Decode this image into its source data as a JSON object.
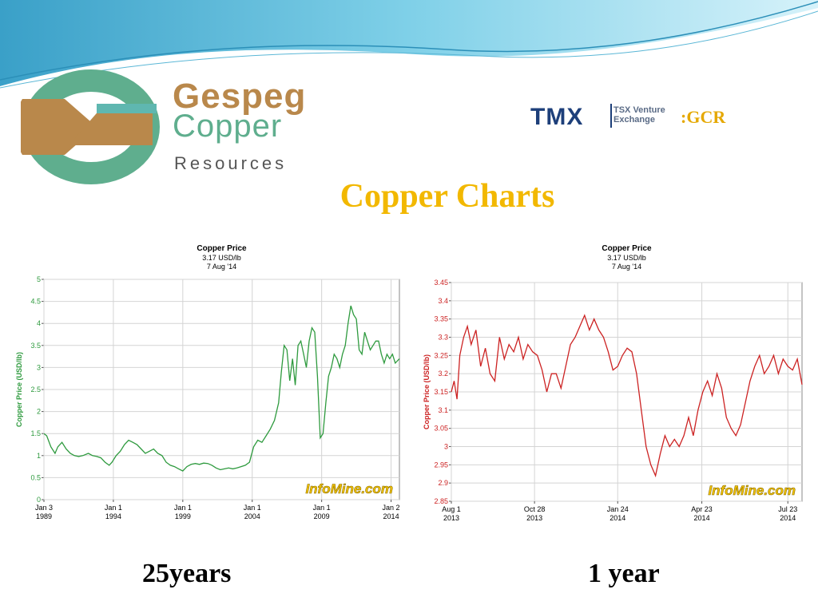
{
  "logo": {
    "line1": "Gespeg",
    "line2": "Copper",
    "line3": "Resources",
    "colors": {
      "bronze": "#b9884b",
      "green": "#5fae8e"
    }
  },
  "exchange": {
    "logo_text": "TMX",
    "exchange_name_line1": "TSX Venture",
    "exchange_name_line2": "Exchange",
    "ticker": ":GCR"
  },
  "title": "Copper Charts",
  "captions": {
    "left": "25years",
    "right": "1 year"
  },
  "chart_data": [
    {
      "type": "line",
      "title": "Copper Price",
      "subtitle1": "3.17 USD/lb",
      "subtitle2": "7 Aug '14",
      "ylabel": "Copper Price (USD/lb)",
      "xlabel": "",
      "watermark": "InfoMine.com",
      "color": "#2e9a3e",
      "ylim": [
        0,
        5
      ],
      "yticks": [
        "0",
        "0.5",
        "1",
        "1.5",
        "2",
        "2.5",
        "3",
        "3.5",
        "4",
        "4.5",
        "5"
      ],
      "xlim": [
        1989.0,
        2014.6
      ],
      "xticks": [
        {
          "pos": 1989.0,
          "line1": "Jan 3",
          "line2": "1989"
        },
        {
          "pos": 1994.0,
          "line1": "Jan 1",
          "line2": "1994"
        },
        {
          "pos": 1999.0,
          "line1": "Jan 1",
          "line2": "1999"
        },
        {
          "pos": 2004.0,
          "line1": "Jan 1",
          "line2": "2004"
        },
        {
          "pos": 2009.0,
          "line1": "Jan 1",
          "line2": "2009"
        },
        {
          "pos": 2014.0,
          "line1": "Jan 2",
          "line2": "2014"
        }
      ],
      "grid": true,
      "x": [
        1989.0,
        1989.2,
        1989.5,
        1989.8,
        1990.0,
        1990.3,
        1990.6,
        1990.9,
        1991.2,
        1991.5,
        1991.8,
        1992.2,
        1992.5,
        1992.8,
        1993.1,
        1993.4,
        1993.7,
        1993.9,
        1994.2,
        1994.5,
        1994.8,
        1995.1,
        1995.4,
        1995.7,
        1996.0,
        1996.3,
        1996.6,
        1996.9,
        1997.2,
        1997.5,
        1997.8,
        1998.1,
        1998.4,
        1998.7,
        1999.0,
        1999.3,
        1999.6,
        1999.9,
        2000.2,
        2000.5,
        2000.8,
        2001.1,
        2001.4,
        2001.7,
        2002.0,
        2002.3,
        2002.6,
        2002.9,
        2003.2,
        2003.5,
        2003.8,
        2004.1,
        2004.4,
        2004.7,
        2005.0,
        2005.3,
        2005.6,
        2005.9,
        2006.1,
        2006.3,
        2006.5,
        2006.7,
        2006.9,
        2007.1,
        2007.3,
        2007.5,
        2007.7,
        2007.9,
        2008.1,
        2008.3,
        2008.5,
        2008.7,
        2008.9,
        2009.1,
        2009.3,
        2009.5,
        2009.7,
        2009.9,
        2010.1,
        2010.3,
        2010.5,
        2010.7,
        2010.9,
        2011.1,
        2011.3,
        2011.5,
        2011.7,
        2011.9,
        2012.1,
        2012.3,
        2012.5,
        2012.7,
        2012.9,
        2013.1,
        2013.3,
        2013.5,
        2013.7,
        2013.9,
        2014.1,
        2014.3,
        2014.6
      ],
      "y": [
        1.5,
        1.45,
        1.2,
        1.05,
        1.2,
        1.3,
        1.15,
        1.05,
        1.0,
        0.98,
        1.0,
        1.05,
        1.0,
        0.98,
        0.95,
        0.85,
        0.78,
        0.85,
        1.0,
        1.1,
        1.25,
        1.35,
        1.3,
        1.25,
        1.15,
        1.05,
        1.1,
        1.15,
        1.05,
        1.0,
        0.85,
        0.78,
        0.75,
        0.7,
        0.65,
        0.75,
        0.8,
        0.82,
        0.8,
        0.83,
        0.82,
        0.78,
        0.72,
        0.68,
        0.7,
        0.72,
        0.7,
        0.72,
        0.75,
        0.78,
        0.85,
        1.2,
        1.35,
        1.3,
        1.45,
        1.6,
        1.8,
        2.2,
        2.9,
        3.5,
        3.4,
        2.7,
        3.2,
        2.6,
        3.5,
        3.6,
        3.3,
        3.0,
        3.6,
        3.9,
        3.8,
        2.8,
        1.4,
        1.5,
        2.2,
        2.8,
        3.0,
        3.3,
        3.2,
        3.0,
        3.3,
        3.5,
        4.0,
        4.4,
        4.2,
        4.1,
        3.4,
        3.3,
        3.8,
        3.6,
        3.4,
        3.5,
        3.6,
        3.6,
        3.3,
        3.1,
        3.3,
        3.2,
        3.3,
        3.1,
        3.2
      ]
    },
    {
      "type": "line",
      "title": "Copper Price",
      "subtitle1": "3.17 USD/lb",
      "subtitle2": "7 Aug '14",
      "ylabel": "Copper Price (USD/lb)",
      "xlabel": "",
      "watermark": "InfoMine.com",
      "color": "#cc2222",
      "ylim": [
        2.85,
        3.45
      ],
      "yticks": [
        "2.85",
        "2.9",
        "2.95",
        "3",
        "3.05",
        "3.1",
        "3.15",
        "3.2",
        "3.25",
        "3.3",
        "3.35",
        "3.4",
        "3.45"
      ],
      "xlim": [
        "2013-08-01",
        "2014-08-07"
      ],
      "xticks": [
        {
          "pos": "2013-08-01",
          "line1": "Aug 1",
          "line2": "2013"
        },
        {
          "pos": "2013-10-28",
          "line1": "Oct 28",
          "line2": "2013"
        },
        {
          "pos": "2014-01-24",
          "line1": "Jan 24",
          "line2": "2014"
        },
        {
          "pos": "2014-04-23",
          "line1": "Apr 23",
          "line2": "2014"
        },
        {
          "pos": "2014-07-23",
          "line1": "Jul 23",
          "line2": "2014"
        }
      ],
      "grid": true,
      "x": [
        "2013-08-01",
        "2013-08-04",
        "2013-08-07",
        "2013-08-10",
        "2013-08-14",
        "2013-08-18",
        "2013-08-22",
        "2013-08-27",
        "2013-09-01",
        "2013-09-06",
        "2013-09-11",
        "2013-09-16",
        "2013-09-21",
        "2013-09-26",
        "2013-10-01",
        "2013-10-06",
        "2013-10-11",
        "2013-10-16",
        "2013-10-21",
        "2013-10-26",
        "2013-10-31",
        "2013-11-05",
        "2013-11-10",
        "2013-11-15",
        "2013-11-20",
        "2013-11-25",
        "2013-11-30",
        "2013-12-05",
        "2013-12-10",
        "2013-12-15",
        "2013-12-20",
        "2013-12-25",
        "2013-12-30",
        "2014-01-04",
        "2014-01-09",
        "2014-01-14",
        "2014-01-19",
        "2014-01-24",
        "2014-01-29",
        "2014-02-03",
        "2014-02-08",
        "2014-02-13",
        "2014-02-18",
        "2014-02-23",
        "2014-02-28",
        "2014-03-05",
        "2014-03-10",
        "2014-03-15",
        "2014-03-20",
        "2014-03-25",
        "2014-03-30",
        "2014-04-04",
        "2014-04-09",
        "2014-04-14",
        "2014-04-19",
        "2014-04-24",
        "2014-04-29",
        "2014-05-04",
        "2014-05-09",
        "2014-05-14",
        "2014-05-19",
        "2014-05-24",
        "2014-05-29",
        "2014-06-03",
        "2014-06-08",
        "2014-06-13",
        "2014-06-18",
        "2014-06-23",
        "2014-06-28",
        "2014-07-03",
        "2014-07-08",
        "2014-07-13",
        "2014-07-18",
        "2014-07-23",
        "2014-07-28",
        "2014-08-02",
        "2014-08-07"
      ],
      "y": [
        3.15,
        3.18,
        3.13,
        3.25,
        3.3,
        3.33,
        3.28,
        3.32,
        3.22,
        3.27,
        3.2,
        3.18,
        3.3,
        3.24,
        3.28,
        3.26,
        3.3,
        3.24,
        3.28,
        3.26,
        3.25,
        3.21,
        3.15,
        3.2,
        3.2,
        3.16,
        3.22,
        3.28,
        3.3,
        3.33,
        3.36,
        3.32,
        3.35,
        3.32,
        3.3,
        3.26,
        3.21,
        3.22,
        3.25,
        3.27,
        3.26,
        3.2,
        3.1,
        3.0,
        2.95,
        2.92,
        2.98,
        3.03,
        3.0,
        3.02,
        3.0,
        3.03,
        3.08,
        3.03,
        3.1,
        3.15,
        3.18,
        3.14,
        3.2,
        3.16,
        3.08,
        3.05,
        3.03,
        3.06,
        3.12,
        3.18,
        3.22,
        3.25,
        3.2,
        3.22,
        3.25,
        3.2,
        3.24,
        3.22,
        3.21,
        3.24,
        3.17
      ]
    }
  ]
}
